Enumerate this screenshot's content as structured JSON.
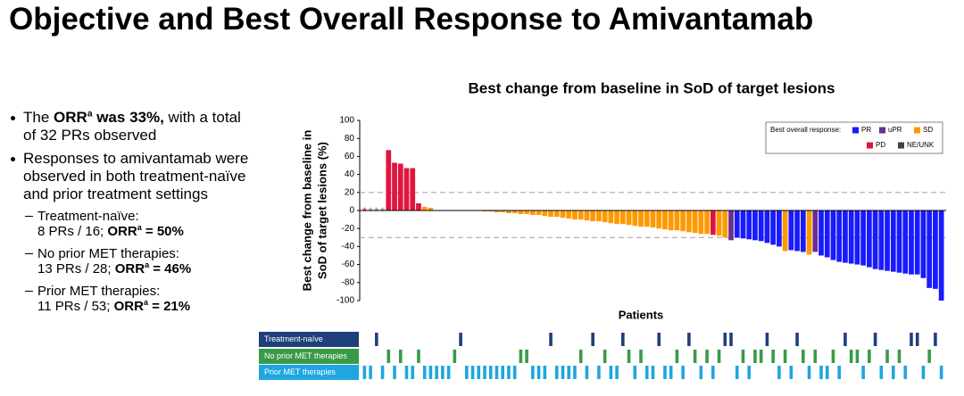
{
  "slide_title": "Objective and Best Overall Response to Amivantamab",
  "bullets": [
    {
      "runs": [
        {
          "text": "The "
        },
        {
          "text": "ORR",
          "bold": true
        },
        {
          "text": "a",
          "bold": true,
          "sup": true
        },
        {
          "text": " was 33%,",
          "bold": true
        },
        {
          "text": " with a total of 32 PRs observed"
        }
      ]
    },
    {
      "runs": [
        {
          "text": "Responses to amivantamab were observed in both treatment-naïve and prior treatment settings"
        }
      ]
    }
  ],
  "sub_bullets": [
    {
      "heading": "Treatment-naïve:",
      "runs": [
        {
          "text": "8 PRs / 16; "
        },
        {
          "text": "ORR",
          "bold": true
        },
        {
          "text": "a",
          "bold": true,
          "sup": true
        },
        {
          "text": " = 50%",
          "bold": true
        }
      ]
    },
    {
      "heading": "No prior MET therapies:",
      "runs": [
        {
          "text": "13 PRs / 28; "
        },
        {
          "text": "ORR",
          "bold": true
        },
        {
          "text": "a",
          "bold": true,
          "sup": true
        },
        {
          "text": " = 46%",
          "bold": true
        }
      ]
    },
    {
      "heading": "Prior MET therapies:",
      "runs": [
        {
          "text": "11 PRs / 53; "
        },
        {
          "text": "ORR",
          "bold": true
        },
        {
          "text": "a",
          "bold": true,
          "sup": true
        },
        {
          "text": " = 21%",
          "bold": true
        }
      ]
    }
  ],
  "chart_data": {
    "type": "waterfall",
    "title": "Best change from baseline in SoD of target lesions",
    "ylabel": [
      "Best change from baseline in",
      "SoD of target lesions (%)"
    ],
    "xlabel": "Patients",
    "ylim": [
      -100,
      100
    ],
    "yticks": [
      100,
      80,
      60,
      40,
      20,
      0,
      -20,
      -40,
      -60,
      -80,
      -100
    ],
    "reference_lines": [
      20,
      -30
    ],
    "values": [
      null,
      null,
      null,
      null,
      67,
      53,
      52,
      47,
      47,
      8,
      4,
      3,
      0,
      0,
      0,
      0,
      0,
      0,
      0,
      0,
      -1,
      -1,
      -2,
      -2,
      -3,
      -3,
      -4,
      -4,
      -5,
      -5,
      -6,
      -7,
      -7,
      -8,
      -9,
      -10,
      -10,
      -11,
      -12,
      -12,
      -13,
      -14,
      -15,
      -15,
      -16,
      -17,
      -18,
      -18,
      -19,
      -20,
      -21,
      -22,
      -22,
      -23,
      -24,
      -25,
      -26,
      -26,
      -27,
      -28,
      -30,
      -33,
      -30,
      -31,
      -32,
      -33,
      -34,
      -36,
      -38,
      -40,
      -45,
      -44,
      -45,
      -46,
      -49,
      -46,
      -50,
      -52,
      -55,
      -57,
      -58,
      -59,
      -60,
      -61,
      -63,
      -65,
      -66,
      -67,
      -68,
      -69,
      -70,
      -71,
      -71,
      -75,
      -86,
      -87,
      -100
    ],
    "colors": [
      null,
      null,
      null,
      null,
      "#e0153f",
      "#e0153f",
      "#e0153f",
      "#e0153f",
      "#e0153f",
      "#e0153f",
      "#ff9900",
      "#ff9900",
      "#ff9900",
      "#ff9900",
      "#ff9900",
      "#ff9900",
      "#ff9900",
      "#ff9900",
      "#ff9900",
      "#ff9900",
      "#ff9900",
      "#ff9900",
      "#ff9900",
      "#ff9900",
      "#ff9900",
      "#ff9900",
      "#ff9900",
      "#ff9900",
      "#ff9900",
      "#ff9900",
      "#ff9900",
      "#ff9900",
      "#ff9900",
      "#ff9900",
      "#ff9900",
      "#ff9900",
      "#ff9900",
      "#ff9900",
      "#ff9900",
      "#ff9900",
      "#ff9900",
      "#ff9900",
      "#ff9900",
      "#ff9900",
      "#ff9900",
      "#ff9900",
      "#ff9900",
      "#ff9900",
      "#ff9900",
      "#ff9900",
      "#ff9900",
      "#ff9900",
      "#ff9900",
      "#ff9900",
      "#ff9900",
      "#ff9900",
      "#ff9900",
      "#ff9900",
      "#e0153f",
      "#ff9900",
      "#ff9900",
      "#6b2f8f",
      "#1a1aff",
      "#1a1aff",
      "#1a1aff",
      "#1a1aff",
      "#1a1aff",
      "#1a1aff",
      "#1a1aff",
      "#1a1aff",
      "#ff9900",
      "#1a1aff",
      "#1a1aff",
      "#1a1aff",
      "#ff9900",
      "#6b2f8f",
      "#1a1aff",
      "#1a1aff",
      "#1a1aff",
      "#1a1aff",
      "#1a1aff",
      "#1a1aff",
      "#1a1aff",
      "#1a1aff",
      "#1a1aff",
      "#1a1aff",
      "#1a1aff",
      "#1a1aff",
      "#1a1aff",
      "#1a1aff",
      "#1a1aff",
      "#1a1aff",
      "#1a1aff",
      "#1a1aff",
      "#1a1aff",
      "#1a1aff",
      "#1a1aff"
    ],
    "null_markers": [
      {
        "text": "*",
        "color": "#e0153f"
      },
      {
        "text": "*",
        "color": "#7f7f7f"
      },
      {
        "text": "*",
        "color": "#7f7f7f"
      },
      {
        "text": "*",
        "color": "#7f7f7f"
      }
    ],
    "legend": {
      "title": "Best overall response:",
      "position": "upper right",
      "entries": [
        {
          "name": "PR",
          "color": "#1a1aff"
        },
        {
          "name": "uPR",
          "color": "#6b2f8f"
        },
        {
          "name": "SD",
          "color": "#ff9900"
        },
        {
          "name": "PD",
          "color": "#e0153f"
        },
        {
          "name": "NE/UNK",
          "color": "#404040"
        }
      ]
    },
    "tracks": [
      {
        "name": "Treatment-naïve",
        "color": "#1f3f7a",
        "patients": [
          2,
          16,
          31,
          38,
          43,
          49,
          54,
          60,
          61,
          67,
          72,
          80,
          85,
          91,
          92,
          95
        ]
      },
      {
        "name": "No prior MET therapies",
        "color": "#3a9a48",
        "patients": [
          4,
          6,
          9,
          15,
          26,
          27,
          36,
          40,
          44,
          46,
          52,
          55,
          57,
          59,
          63,
          65,
          66,
          68,
          70,
          73,
          75,
          78,
          81,
          82,
          84,
          87,
          89,
          94
        ]
      },
      {
        "name": "Prior MET therapies",
        "color": "#1ea6e0",
        "patients": [
          0,
          1,
          3,
          5,
          7,
          8,
          10,
          11,
          12,
          13,
          14,
          17,
          18,
          19,
          20,
          21,
          22,
          23,
          24,
          25,
          28,
          29,
          30,
          32,
          33,
          34,
          35,
          37,
          39,
          41,
          42,
          45,
          47,
          48,
          50,
          51,
          53,
          56,
          58,
          62,
          64,
          69,
          71,
          74,
          76,
          77,
          79,
          83,
          86,
          88,
          90,
          93,
          96
        ]
      }
    ]
  }
}
